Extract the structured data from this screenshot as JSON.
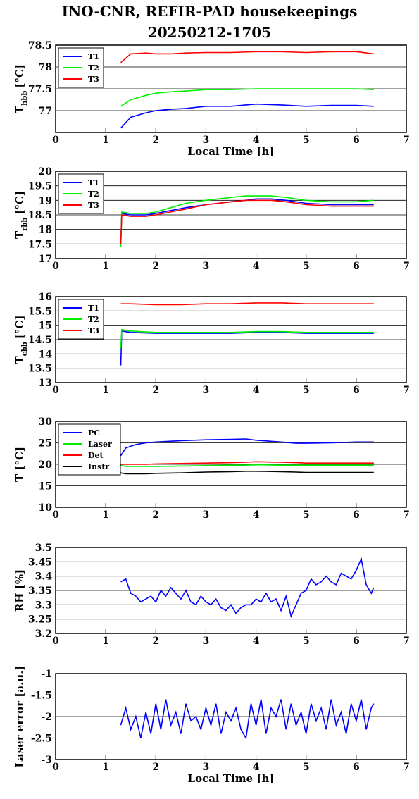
{
  "page": {
    "title_line1": "INO-CNR, REFIR-PAD housekeepings",
    "title_line2": "20250212-1705"
  },
  "chart_data": [
    {
      "type": "line",
      "ylabel": "T",
      "ylabel_sub": "hbb",
      "ylabel_unit": "[°C]",
      "xlabel": "Local Time [h]",
      "xlim": [
        0,
        7
      ],
      "ylim": [
        76.5,
        78.5
      ],
      "yticks": [
        "77",
        "77.5",
        "78",
        "78.5"
      ],
      "xticks": [
        "0",
        "1",
        "2",
        "3",
        "4",
        "5",
        "6",
        "7"
      ],
      "grid": true,
      "legend": "top-left",
      "x": [
        1.3,
        1.5,
        1.8,
        2.0,
        2.3,
        2.6,
        3.0,
        3.5,
        4.0,
        4.5,
        5.0,
        5.5,
        6.0,
        6.35
      ],
      "series": [
        {
          "name": "T1",
          "color": "#0000ff",
          "values": [
            76.6,
            76.85,
            76.95,
            77.0,
            77.03,
            77.05,
            77.1,
            77.1,
            77.15,
            77.13,
            77.1,
            77.12,
            77.12,
            77.1
          ]
        },
        {
          "name": "T2",
          "color": "#00ee00",
          "values": [
            77.1,
            77.25,
            77.35,
            77.4,
            77.43,
            77.45,
            77.48,
            77.48,
            77.5,
            77.5,
            77.5,
            77.5,
            77.5,
            77.48
          ]
        },
        {
          "name": "T3",
          "color": "#ff0000",
          "values": [
            78.1,
            78.3,
            78.32,
            78.3,
            78.3,
            78.32,
            78.33,
            78.33,
            78.35,
            78.35,
            78.33,
            78.35,
            78.35,
            78.3
          ]
        }
      ]
    },
    {
      "type": "line",
      "ylabel": "T",
      "ylabel_sub": "rbb",
      "ylabel_unit": "[°C]",
      "xlabel": "",
      "xlim": [
        0,
        7
      ],
      "ylim": [
        17,
        20
      ],
      "yticks": [
        "17",
        "17.5",
        "18",
        "18.5",
        "19",
        "19.5",
        "20"
      ],
      "xticks": [
        "0",
        "1",
        "2",
        "3",
        "4",
        "5",
        "6",
        "7"
      ],
      "grid": true,
      "legend": "top-left",
      "x": [
        1.3,
        1.32,
        1.5,
        1.8,
        2.0,
        2.3,
        2.6,
        3.0,
        3.5,
        3.8,
        4.0,
        4.3,
        4.6,
        5.0,
        5.5,
        6.0,
        6.35
      ],
      "series": [
        {
          "name": "T1",
          "color": "#0000ff",
          "values": [
            17.5,
            18.55,
            18.5,
            18.5,
            18.55,
            18.65,
            18.75,
            18.85,
            18.95,
            19.0,
            19.05,
            19.05,
            19.0,
            18.9,
            18.85,
            18.85,
            18.85
          ]
        },
        {
          "name": "T2",
          "color": "#00ee00",
          "values": [
            17.4,
            18.6,
            18.55,
            18.55,
            18.6,
            18.75,
            18.9,
            19.0,
            19.1,
            19.15,
            19.15,
            19.15,
            19.1,
            19.0,
            18.95,
            18.95,
            19.0
          ]
        },
        {
          "name": "T3",
          "color": "#ff0000",
          "values": [
            17.5,
            18.5,
            18.45,
            18.45,
            18.5,
            18.6,
            18.7,
            18.85,
            18.95,
            19.0,
            19.0,
            19.0,
            18.95,
            18.85,
            18.8,
            18.8,
            18.8
          ]
        }
      ]
    },
    {
      "type": "line",
      "ylabel": "T",
      "ylabel_sub": "cbb",
      "ylabel_unit": "[°C]",
      "xlabel": "",
      "xlim": [
        0,
        7
      ],
      "ylim": [
        13,
        16
      ],
      "yticks": [
        "13",
        "13.5",
        "14",
        "14.5",
        "15",
        "15.5",
        "16"
      ],
      "xticks": [
        "0",
        "1",
        "2",
        "3",
        "4",
        "5",
        "6",
        "7"
      ],
      "grid": true,
      "legend": "top-left",
      "x": [
        1.3,
        1.32,
        1.5,
        2.0,
        2.5,
        3.0,
        3.5,
        4.0,
        4.5,
        5.0,
        5.5,
        6.0,
        6.35
      ],
      "series": [
        {
          "name": "T1",
          "color": "#0000ff",
          "values": [
            13.6,
            14.8,
            14.75,
            14.72,
            14.72,
            14.72,
            14.72,
            14.75,
            14.75,
            14.72,
            14.72,
            14.72,
            14.72
          ]
        },
        {
          "name": "T2",
          "color": "#00ee00",
          "values": [
            14.2,
            14.85,
            14.8,
            14.75,
            14.75,
            14.75,
            14.75,
            14.78,
            14.78,
            14.75,
            14.75,
            14.75,
            14.75
          ]
        },
        {
          "name": "T3",
          "color": "#ff0000",
          "values": [
            15.75,
            15.75,
            15.75,
            15.72,
            15.72,
            15.75,
            15.75,
            15.78,
            15.78,
            15.75,
            15.75,
            15.75,
            15.75
          ]
        }
      ]
    },
    {
      "type": "line",
      "ylabel": "T [°C]",
      "ylabel_sub": "",
      "ylabel_unit": "",
      "xlabel": "",
      "xlim": [
        0,
        7
      ],
      "ylim": [
        10,
        30
      ],
      "yticks": [
        "10",
        "15",
        "20",
        "25",
        "30"
      ],
      "xticks": [
        "0",
        "1",
        "2",
        "3",
        "4",
        "5",
        "6",
        "7"
      ],
      "grid": true,
      "legend": "top-left",
      "x": [
        1.3,
        1.4,
        1.6,
        1.8,
        2.0,
        2.5,
        3.0,
        3.5,
        3.8,
        4.0,
        4.5,
        4.8,
        5.0,
        5.5,
        6.0,
        6.35
      ],
      "series": [
        {
          "name": "PC",
          "color": "#0000ff",
          "values": [
            22.0,
            23.8,
            24.6,
            25.0,
            25.2,
            25.5,
            25.7,
            25.8,
            25.9,
            25.6,
            25.2,
            24.9,
            24.9,
            25.0,
            25.2,
            25.2
          ]
        },
        {
          "name": "Laser",
          "color": "#00ee00",
          "values": [
            19.8,
            19.5,
            19.5,
            19.5,
            19.5,
            19.6,
            19.7,
            19.8,
            19.8,
            19.9,
            19.8,
            19.8,
            19.8,
            19.8,
            19.8,
            19.8
          ]
        },
        {
          "name": "Det",
          "color": "#ff0000",
          "values": [
            20.0,
            20.0,
            20.0,
            20.0,
            20.1,
            20.2,
            20.3,
            20.4,
            20.5,
            20.6,
            20.5,
            20.4,
            20.3,
            20.3,
            20.3,
            20.3
          ]
        },
        {
          "name": "Instr",
          "color": "#000000",
          "values": [
            18.0,
            17.8,
            17.8,
            17.8,
            17.9,
            18.0,
            18.2,
            18.3,
            18.4,
            18.4,
            18.3,
            18.2,
            18.1,
            18.1,
            18.1,
            18.1
          ]
        }
      ]
    },
    {
      "type": "line",
      "ylabel": "RH [%]",
      "ylabel_sub": "",
      "ylabel_unit": "",
      "xlabel": "",
      "xlim": [
        0,
        7
      ],
      "ylim": [
        3.2,
        3.5
      ],
      "yticks": [
        "3.2",
        "3.25",
        "3.3",
        "3.35",
        "3.4",
        "3.45",
        "3.5"
      ],
      "xticks": [
        "0",
        "1",
        "2",
        "3",
        "4",
        "5",
        "6",
        "7"
      ],
      "grid": true,
      "x": [
        1.3,
        1.4,
        1.5,
        1.6,
        1.7,
        1.8,
        1.9,
        2.0,
        2.1,
        2.2,
        2.3,
        2.4,
        2.5,
        2.6,
        2.7,
        2.8,
        2.9,
        3.0,
        3.1,
        3.2,
        3.3,
        3.4,
        3.5,
        3.6,
        3.7,
        3.8,
        3.9,
        4.0,
        4.1,
        4.2,
        4.3,
        4.4,
        4.5,
        4.6,
        4.7,
        4.8,
        4.9,
        5.0,
        5.1,
        5.2,
        5.3,
        5.4,
        5.5,
        5.6,
        5.7,
        5.8,
        5.9,
        6.0,
        6.1,
        6.2,
        6.3,
        6.35
      ],
      "series": [
        {
          "name": "",
          "color": "#0000ff",
          "values": [
            3.38,
            3.39,
            3.34,
            3.33,
            3.31,
            3.32,
            3.33,
            3.31,
            3.35,
            3.33,
            3.36,
            3.34,
            3.32,
            3.35,
            3.31,
            3.3,
            3.33,
            3.31,
            3.3,
            3.32,
            3.29,
            3.28,
            3.3,
            3.27,
            3.29,
            3.3,
            3.3,
            3.32,
            3.31,
            3.34,
            3.31,
            3.32,
            3.28,
            3.33,
            3.26,
            3.3,
            3.34,
            3.35,
            3.39,
            3.37,
            3.38,
            3.4,
            3.38,
            3.37,
            3.41,
            3.4,
            3.39,
            3.42,
            3.46,
            3.37,
            3.34,
            3.36
          ]
        }
      ]
    },
    {
      "type": "line",
      "ylabel": "Laser error [a.u.]",
      "ylabel_sub": "",
      "ylabel_unit": "",
      "xlabel": "Local Time [h]",
      "xlim": [
        0,
        7
      ],
      "ylim": [
        -3,
        -1
      ],
      "yticks": [
        "-3",
        "-2.5",
        "-2",
        "-1.5",
        "-1"
      ],
      "xticks": [
        "0",
        "1",
        "2",
        "3",
        "4",
        "5",
        "6",
        "7"
      ],
      "grid": true,
      "x": [
        1.3,
        1.4,
        1.5,
        1.6,
        1.7,
        1.8,
        1.9,
        2.0,
        2.1,
        2.2,
        2.3,
        2.4,
        2.5,
        2.6,
        2.7,
        2.8,
        2.9,
        3.0,
        3.1,
        3.2,
        3.3,
        3.4,
        3.5,
        3.6,
        3.7,
        3.8,
        3.9,
        4.0,
        4.1,
        4.2,
        4.3,
        4.4,
        4.5,
        4.6,
        4.7,
        4.8,
        4.9,
        5.0,
        5.1,
        5.2,
        5.3,
        5.4,
        5.5,
        5.6,
        5.7,
        5.8,
        5.9,
        6.0,
        6.1,
        6.2,
        6.3,
        6.35
      ],
      "series": [
        {
          "name": "",
          "color": "#0000ff",
          "values": [
            -2.2,
            -1.8,
            -2.3,
            -2.0,
            -2.5,
            -1.9,
            -2.4,
            -1.7,
            -2.3,
            -1.6,
            -2.2,
            -1.9,
            -2.4,
            -1.7,
            -2.1,
            -2.0,
            -2.3,
            -1.8,
            -2.2,
            -1.7,
            -2.4,
            -1.9,
            -2.1,
            -1.8,
            -2.3,
            -2.5,
            -1.7,
            -2.2,
            -1.6,
            -2.4,
            -1.8,
            -2.0,
            -1.6,
            -2.3,
            -1.7,
            -2.2,
            -1.9,
            -2.4,
            -1.7,
            -2.1,
            -1.8,
            -2.3,
            -1.6,
            -2.2,
            -1.9,
            -2.4,
            -1.7,
            -2.1,
            -1.6,
            -2.3,
            -1.8,
            -1.7
          ]
        }
      ]
    }
  ]
}
